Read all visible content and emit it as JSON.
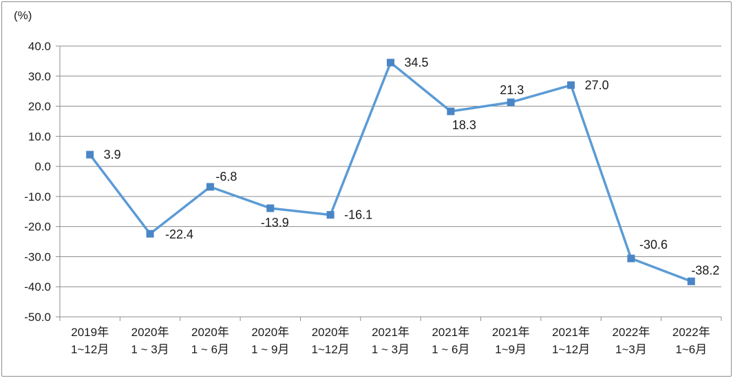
{
  "chart_data": {
    "type": "line",
    "unit_label": "(%)",
    "ylim": [
      -50,
      40
    ],
    "ytick_step": 10,
    "yticks": [
      "40.0",
      "30.0",
      "20.0",
      "10.0",
      "0.0",
      "-10.0",
      "-20.0",
      "-30.0",
      "-40.0",
      "-50.0"
    ],
    "grid": true,
    "categories": [
      [
        "2019年",
        "1~12月"
      ],
      [
        "2020年",
        "1 ~ 3月"
      ],
      [
        "2020年",
        "1 ~ 6月"
      ],
      [
        "2020年",
        "1 ~ 9月"
      ],
      [
        "2020年",
        "1~12月"
      ],
      [
        "2021年",
        "1 ~ 3月"
      ],
      [
        "2021年",
        "1 ~ 6月"
      ],
      [
        "2021年",
        "1~9月"
      ],
      [
        "2021年",
        "1~12月"
      ],
      [
        "2022年",
        "1~3月"
      ],
      [
        "2022年",
        "1~6月"
      ]
    ],
    "series": [
      {
        "values": [
          3.9,
          -22.4,
          -6.8,
          -13.9,
          -16.1,
          34.5,
          18.3,
          21.3,
          27.0,
          -30.6,
          -38.2
        ],
        "labels": [
          "3.9",
          "-22.4",
          "-6.8",
          "-13.9",
          "-16.1",
          "34.5",
          "18.3",
          "21.3",
          "27.0",
          "-30.6",
          "-38.2"
        ],
        "color": "#5b9bd5",
        "marker_color": "#4a86c5"
      }
    ]
  }
}
